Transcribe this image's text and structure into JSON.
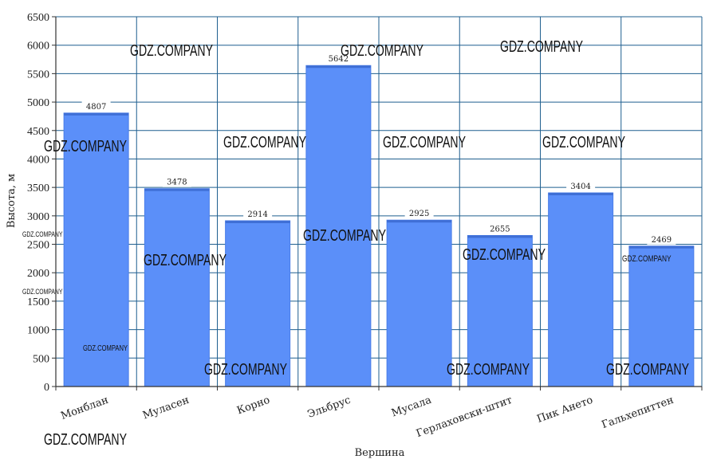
{
  "chart_data": {
    "type": "bar",
    "categories": [
      "Монблан",
      "Муласен",
      "Корно",
      "Эльбрус",
      "Мусала",
      "Герлаховски-штит",
      "Пик Ането",
      "Гальхепиттен"
    ],
    "values": [
      4807,
      3478,
      2914,
      5642,
      2925,
      2655,
      3404,
      2469
    ],
    "data_labels": [
      "4807",
      "3478",
      "2914",
      "5642",
      "2925",
      "2655",
      "3404",
      "2469"
    ],
    "xlabel": "Вершина",
    "ylabel": "Высота, м",
    "ylim": [
      0,
      6500
    ],
    "yticks": [
      0,
      500,
      1000,
      1500,
      2000,
      2500,
      3000,
      3500,
      4000,
      4500,
      5000,
      5500,
      6000,
      6500
    ],
    "grid": true,
    "bar_color": "#5b8ff9",
    "watermark_text": "GDZ.COMPANY"
  }
}
